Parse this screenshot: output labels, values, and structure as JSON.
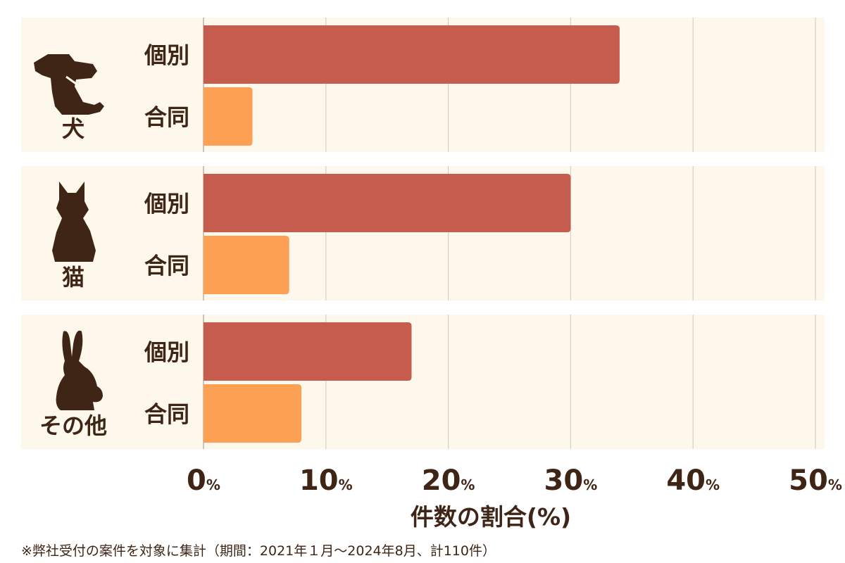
{
  "chart_data": {
    "type": "bar",
    "orientation": "horizontal",
    "groups": [
      {
        "name": "犬",
        "icon": "dog-icon",
        "categories": [
          "個別",
          "合同"
        ],
        "values": [
          34,
          4
        ]
      },
      {
        "name": "猫",
        "icon": "cat-icon",
        "categories": [
          "個別",
          "合同"
        ],
        "values": [
          30,
          7
        ]
      },
      {
        "name": "その他",
        "icon": "rabbit-icon",
        "categories": [
          "個別",
          "合同"
        ],
        "values": [
          17,
          8
        ]
      }
    ],
    "series_colors": {
      "個別": "#c65c4e",
      "合同": "#fca153"
    },
    "xlim": [
      0,
      50
    ],
    "xticks": [
      0,
      10,
      20,
      30,
      40,
      50
    ],
    "tick_unit": "%",
    "xlabel": "件数の割合(%)",
    "grid": true,
    "background_color": "#fdf8eb",
    "text_color": "#3f2516"
  },
  "footnote": "※弊社受付の案件を対象に集計（期間：2021年１月〜2024年8月、計110件）"
}
